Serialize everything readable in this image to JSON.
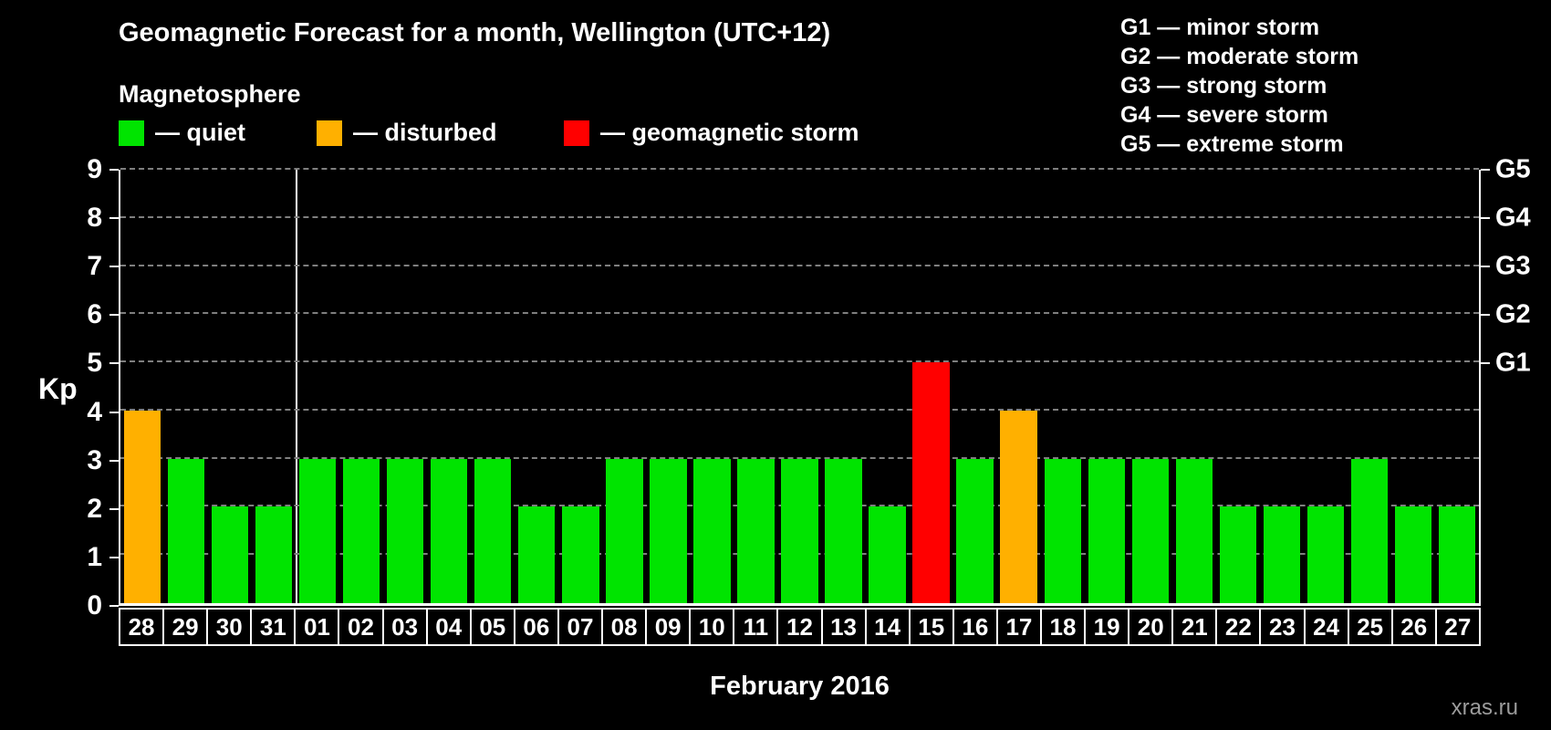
{
  "title": "Geomagnetic Forecast for a month, Wellington (UTC+12)",
  "subtitle": "Magnetosphere",
  "legend": {
    "items": [
      {
        "key": "quiet",
        "label": "— quiet"
      },
      {
        "key": "disturbed",
        "label": "— disturbed"
      },
      {
        "key": "storm",
        "label": "— geomagnetic storm"
      }
    ]
  },
  "g_legend": [
    "G1 — minor storm",
    "G2 — moderate storm",
    "G3 — strong storm",
    "G4 — severe storm",
    "G5 — extreme storm"
  ],
  "watermark": "xras.ru",
  "chart_data": {
    "type": "bar",
    "title": "Geomagnetic Forecast for a month, Wellington (UTC+12)",
    "xlabel": "February 2016",
    "ylabel": "Kp",
    "ylim": [
      0,
      9
    ],
    "grid": "dashed horizontal line at each integer Kp value",
    "legend_position": "top",
    "categories": [
      "28",
      "29",
      "30",
      "31",
      "01",
      "02",
      "03",
      "04",
      "05",
      "06",
      "07",
      "08",
      "09",
      "10",
      "11",
      "12",
      "13",
      "14",
      "15",
      "16",
      "17",
      "18",
      "19",
      "20",
      "21",
      "22",
      "23",
      "24",
      "25",
      "26",
      "27"
    ],
    "values": [
      4,
      3,
      2,
      2,
      3,
      3,
      3,
      3,
      3,
      2,
      2,
      3,
      3,
      3,
      3,
      3,
      3,
      2,
      5,
      3,
      4,
      3,
      3,
      3,
      3,
      2,
      2,
      2,
      3,
      2,
      2
    ],
    "statuses": [
      "disturbed",
      "quiet",
      "quiet",
      "quiet",
      "quiet",
      "quiet",
      "quiet",
      "quiet",
      "quiet",
      "quiet",
      "quiet",
      "quiet",
      "quiet",
      "quiet",
      "quiet",
      "quiet",
      "quiet",
      "quiet",
      "storm",
      "quiet",
      "disturbed",
      "quiet",
      "quiet",
      "quiet",
      "quiet",
      "quiet",
      "quiet",
      "quiet",
      "quiet",
      "quiet",
      "quiet"
    ],
    "colors": {
      "quiet": "#00e400",
      "disturbed": "#ffb000",
      "storm": "#ff0000"
    },
    "right_axis": [
      {
        "label": "G1",
        "value": 5
      },
      {
        "label": "G2",
        "value": 6
      },
      {
        "label": "G3",
        "value": 7
      },
      {
        "label": "G4",
        "value": 8
      },
      {
        "label": "G5",
        "value": 9
      }
    ],
    "month_divider_index": 4
  }
}
